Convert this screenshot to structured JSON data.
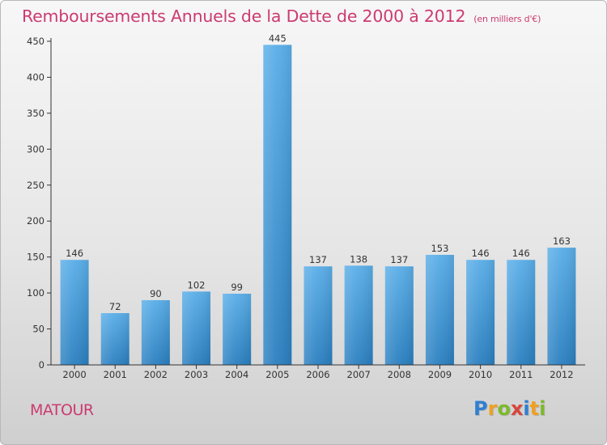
{
  "header": {
    "title": "Remboursements Annuels de la Dette de 2000 à 2012",
    "subtitle": "(en milliers d'€)"
  },
  "footer": {
    "commune": "MATOUR",
    "brand": "Proxiti",
    "brand_letters": [
      {
        "char": "P",
        "color": "#2f7fd1"
      },
      {
        "char": "r",
        "color": "#f0a020"
      },
      {
        "char": "o",
        "color": "#7cba2c"
      },
      {
        "char": "x",
        "color": "#d9453a"
      },
      {
        "char": "i",
        "color": "#2f7fd1"
      },
      {
        "char": "t",
        "color": "#f0a020"
      },
      {
        "char": "i",
        "color": "#7cba2c"
      }
    ]
  },
  "colors": {
    "title": "#cc3b70",
    "bar_top": "#5aaee8",
    "bar_bottom": "#2a7fc0",
    "axis": "#333333"
  },
  "chart_data": {
    "type": "bar",
    "title": "Remboursements Annuels de la Dette de 2000 à 2012",
    "subtitle": "(en milliers d'€)",
    "xlabel": "",
    "ylabel": "",
    "categories": [
      "2000",
      "2001",
      "2002",
      "2003",
      "2004",
      "2005",
      "2006",
      "2007",
      "2008",
      "2009",
      "2010",
      "2011",
      "2012"
    ],
    "values": [
      146,
      72,
      90,
      102,
      99,
      445,
      137,
      138,
      137,
      153,
      146,
      146,
      163
    ],
    "ylim": [
      0,
      450
    ],
    "yticks": [
      0,
      50,
      100,
      150,
      200,
      250,
      300,
      350,
      400,
      450
    ],
    "grid": false,
    "legend": "none"
  }
}
